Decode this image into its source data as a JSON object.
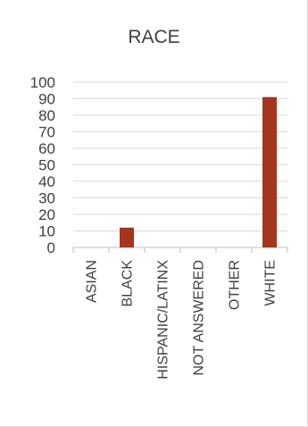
{
  "chart_data": {
    "type": "bar",
    "title": "RACE",
    "categories": [
      "ASIAN",
      "BLACK",
      "HISPANIC/LATINX",
      "NOT ANSWERED",
      "OTHER",
      "WHITE"
    ],
    "values": [
      0,
      12,
      0,
      0,
      0,
      91
    ],
    "ylim": [
      0,
      100
    ],
    "yticks": [
      0,
      10,
      20,
      30,
      40,
      50,
      60,
      70,
      80,
      90,
      100
    ],
    "xlabel": "",
    "ylabel": "",
    "bar_color": "#a5361c",
    "grid": true,
    "legend": "none"
  }
}
